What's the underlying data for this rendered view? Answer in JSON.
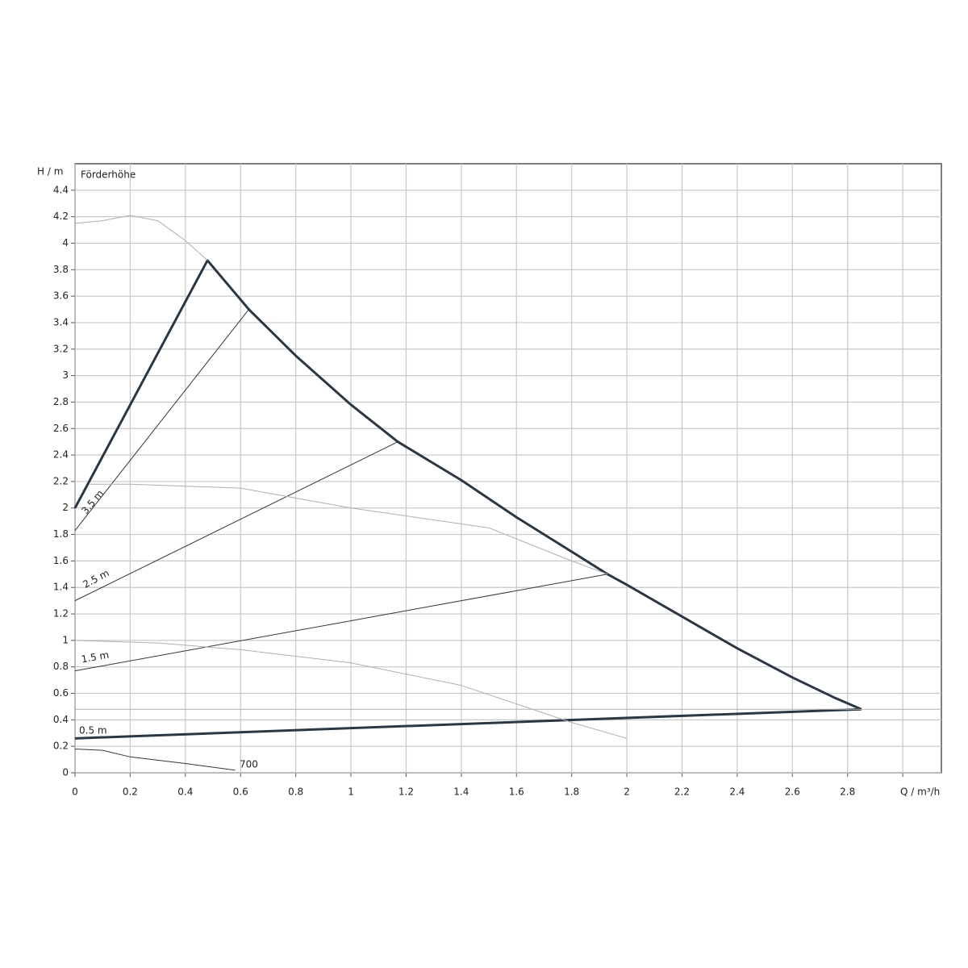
{
  "chart_data": {
    "type": "line",
    "xlabel": "Q / m³/h",
    "ylabel": "H / m",
    "subtitle": "Förderhöhe",
    "xlim": [
      0,
      3.14
    ],
    "ylim": [
      0,
      4.6
    ],
    "xticks": [
      0,
      0.2,
      0.4,
      0.6,
      0.8,
      1,
      1.2,
      1.4,
      1.6,
      1.8,
      2,
      2.2,
      2.4,
      2.6,
      2.8,
      {
        "value": 3,
        "label": null
      }
    ],
    "yticks": [
      0,
      0.2,
      0.4,
      0.6,
      0.8,
      1,
      1.2,
      1.4,
      1.6,
      1.8,
      2,
      2.2,
      2.4,
      2.6,
      2.8,
      3,
      3.2,
      3.4,
      3.6,
      3.8,
      4,
      4.2,
      4.4
    ],
    "grid": true,
    "series": [
      {
        "color": "#2b3844",
        "linewidth": 3,
        "x": [
          0,
          0.48,
          0.63,
          0.8,
          1.0,
          1.17,
          1.4,
          1.6,
          1.8,
          1.93,
          2.0,
          2.2,
          2.4,
          2.6,
          2.75,
          2.85
        ],
        "values": [
          2.0,
          3.87,
          3.5,
          3.15,
          2.78,
          2.5,
          2.21,
          1.93,
          1.67,
          1.5,
          1.42,
          1.18,
          0.94,
          0.72,
          0.57,
          0.48
        ]
      },
      {
        "color": "#2b3844",
        "linewidth": 1,
        "x": [
          0,
          0.63
        ],
        "values": [
          1.83,
          3.5
        ]
      },
      {
        "color": "#2b3844",
        "linewidth": 1,
        "x": [
          0,
          1.17
        ],
        "values": [
          1.3,
          2.5
        ]
      },
      {
        "color": "#2b3844",
        "linewidth": 1,
        "x": [
          0,
          1.93
        ],
        "values": [
          0.77,
          1.5
        ]
      },
      {
        "color": "#2b3844",
        "linewidth": 3,
        "x": [
          0,
          2.85
        ],
        "values": [
          0.26,
          0.48
        ]
      },
      {
        "color": "#b0b0b0",
        "linewidth": 1,
        "x": [
          0,
          0.1,
          0.2,
          0.3,
          0.4,
          0.48
        ],
        "values": [
          4.15,
          4.17,
          4.21,
          4.17,
          4.02,
          3.87
        ]
      },
      {
        "color": "#b0b0b0",
        "linewidth": 1,
        "x": [
          0.05,
          0.2,
          0.6,
          1.0,
          1.5,
          1.8,
          1.93
        ],
        "values": [
          2.18,
          2.18,
          2.15,
          2.0,
          1.85,
          1.6,
          1.5
        ]
      },
      {
        "color": "#b0b0b0",
        "linewidth": 1,
        "x": [
          0,
          0.3,
          0.6,
          1.0,
          1.4,
          1.8,
          2.0
        ],
        "values": [
          1.0,
          0.98,
          0.93,
          0.83,
          0.66,
          0.38,
          0.26
        ]
      },
      {
        "color": "#b0b0b0",
        "linewidth": 1,
        "x": [
          0,
          3.14
        ],
        "values": [
          0.48,
          0.48
        ]
      },
      {
        "color": "#2b3844",
        "linewidth": 1,
        "x": [
          0,
          0.1,
          0.2,
          0.4,
          0.58
        ],
        "values": [
          0.18,
          0.17,
          0.12,
          0.07,
          0.02
        ]
      }
    ],
    "annotations": [
      "3.5 m",
      "2.5 m",
      "1.5 m",
      "0.5 m",
      "700"
    ]
  }
}
